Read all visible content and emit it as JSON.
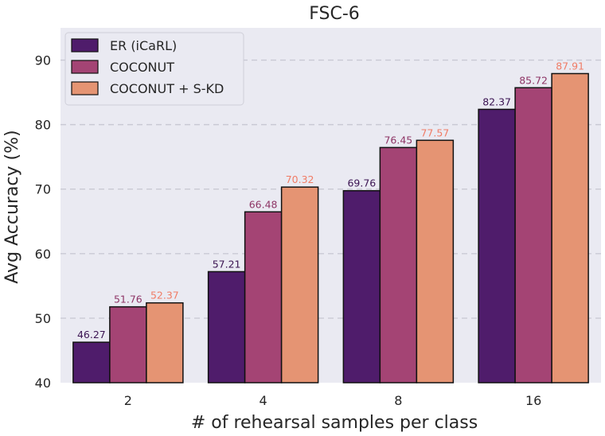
{
  "chart_data": {
    "type": "bar",
    "title": "FSC-6",
    "xlabel": "# of rehearsal samples per class",
    "ylabel": "Avg Accuracy (%)",
    "categories": [
      "2",
      "4",
      "8",
      "16"
    ],
    "ylim": [
      40,
      95
    ],
    "yticks": [
      40,
      50,
      60,
      70,
      80,
      90
    ],
    "grid": "horizontal dashed",
    "legend_position": "top-left",
    "series": [
      {
        "name": "ER (iCaRL)",
        "color": "#4f1c6b",
        "label_color": "#3b1452",
        "values": [
          46.27,
          57.21,
          69.76,
          82.37
        ],
        "labels": [
          "46.27",
          "57.21",
          "69.76",
          "82.37"
        ]
      },
      {
        "name": "COCONUT",
        "color": "#a44474",
        "label_color": "#8e3566",
        "values": [
          51.76,
          66.48,
          76.45,
          85.72
        ],
        "labels": [
          "51.76",
          "66.48",
          "76.45",
          "85.72"
        ]
      },
      {
        "name": "COCONUT + S-KD",
        "color": "#e59473",
        "label_color": "#f07c66",
        "values": [
          52.37,
          70.32,
          77.57,
          87.91
        ],
        "labels": [
          "52.37",
          "70.32",
          "77.57",
          "87.91"
        ]
      }
    ]
  }
}
